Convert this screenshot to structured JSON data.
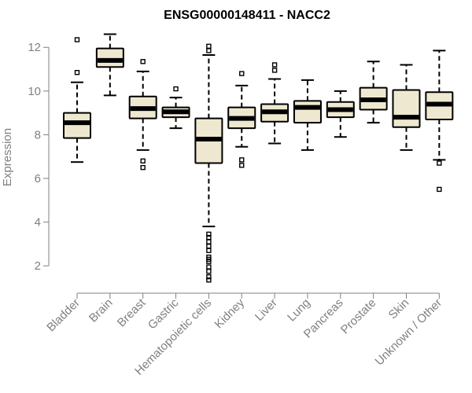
{
  "chart_data": {
    "type": "boxplot",
    "title": "ENSG00000148411 - NACC2",
    "xlabel": "",
    "ylabel": "Expression",
    "ylim": [
      1.0,
      12.8
    ],
    "yticks": [
      2,
      4,
      6,
      8,
      10,
      12
    ],
    "box_fill": "#EEE8D0",
    "box_stroke": "#000000",
    "axis_color": "#808080",
    "categories": [
      "Bladder",
      "Brain",
      "Breast",
      "Gastric",
      "Hematopoietic cells",
      "Kidney",
      "Liver",
      "Lung",
      "Pancreas",
      "Prostate",
      "Skin",
      "Unknown / Other"
    ],
    "boxes": [
      {
        "q1": 7.85,
        "median": 8.55,
        "q3": 9.0,
        "wlo": 6.75,
        "whi": 10.4,
        "outliers": [
          12.35,
          10.85
        ]
      },
      {
        "q1": 11.1,
        "median": 11.4,
        "q3": 11.95,
        "wlo": 9.8,
        "whi": 12.6,
        "outliers": []
      },
      {
        "q1": 8.75,
        "median": 9.2,
        "q3": 9.75,
        "wlo": 7.3,
        "whi": 10.9,
        "outliers": [
          11.35,
          6.8,
          6.5
        ]
      },
      {
        "q1": 8.8,
        "median": 9.05,
        "q3": 9.25,
        "wlo": 8.3,
        "whi": 9.7,
        "outliers": [
          10.1
        ]
      },
      {
        "q1": 6.7,
        "median": 7.8,
        "q3": 8.75,
        "wlo": 3.8,
        "whi": 11.65,
        "outliers": [
          12.05,
          11.85,
          3.45,
          3.3,
          3.1,
          2.9,
          2.7,
          2.4,
          2.3,
          2.2,
          1.95,
          1.75,
          1.5,
          1.35
        ]
      },
      {
        "q1": 8.3,
        "median": 8.75,
        "q3": 9.25,
        "wlo": 7.45,
        "whi": 10.25,
        "outliers": [
          10.8,
          6.85,
          6.6
        ]
      },
      {
        "q1": 8.6,
        "median": 9.05,
        "q3": 9.4,
        "wlo": 7.6,
        "whi": 10.55,
        "outliers": [
          11.2,
          10.95
        ]
      },
      {
        "q1": 8.55,
        "median": 9.25,
        "q3": 9.55,
        "wlo": 7.3,
        "whi": 10.5,
        "outliers": []
      },
      {
        "q1": 8.8,
        "median": 9.15,
        "q3": 9.5,
        "wlo": 7.9,
        "whi": 10.0,
        "outliers": []
      },
      {
        "q1": 9.15,
        "median": 9.6,
        "q3": 10.15,
        "wlo": 8.55,
        "whi": 11.35,
        "outliers": []
      },
      {
        "q1": 8.35,
        "median": 8.8,
        "q3": 10.05,
        "wlo": 7.3,
        "whi": 11.2,
        "outliers": []
      },
      {
        "q1": 8.7,
        "median": 9.4,
        "q3": 9.95,
        "wlo": 6.85,
        "whi": 11.85,
        "outliers": [
          6.7,
          5.5
        ]
      }
    ]
  }
}
